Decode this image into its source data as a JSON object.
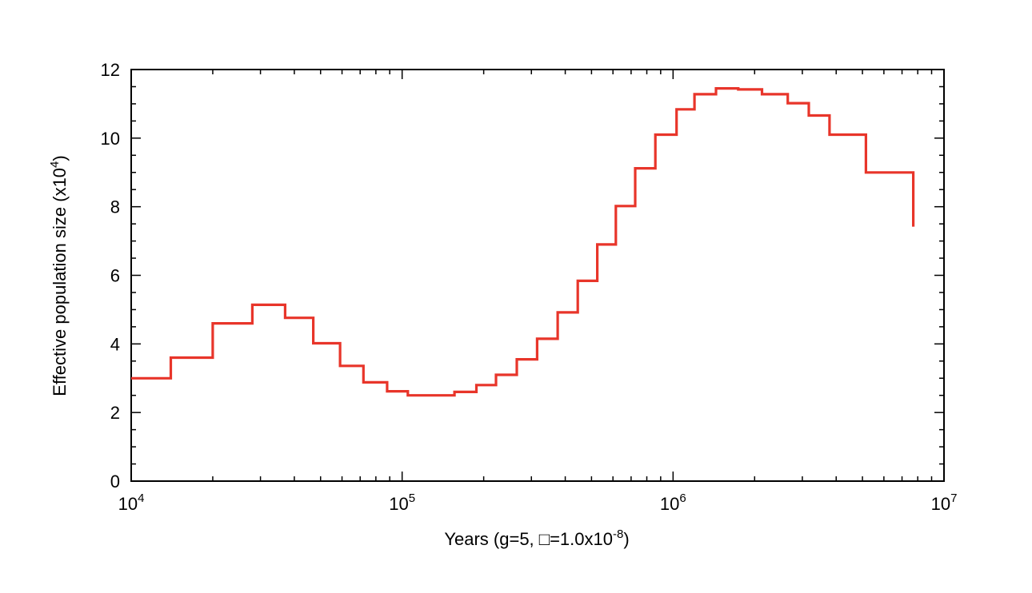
{
  "colors": {
    "line": "#e8352a",
    "axis": "#000000",
    "background": "#ffffff"
  },
  "chart_data": {
    "type": "line",
    "step": true,
    "x_scale": "log",
    "xlim": [
      10000,
      10000000
    ],
    "ylim": [
      0,
      12
    ],
    "grid": false,
    "legend": "none",
    "xlabel": {
      "prefix": "Years (g=5, ",
      "missing_glyph": "□",
      "middle": "=1.0x10",
      "superscript": "-8",
      "suffix": ")"
    },
    "ylabel": {
      "main": "Effective population size (x10",
      "superscript": "4",
      "suffix": ")"
    },
    "x_ticks": [
      {
        "value": 10000,
        "base": "10",
        "exp": "4"
      },
      {
        "value": 100000,
        "base": "10",
        "exp": "5"
      },
      {
        "value": 1000000,
        "base": "10",
        "exp": "6"
      },
      {
        "value": 10000000,
        "base": "10",
        "exp": "7"
      }
    ],
    "y_ticks": [
      {
        "value": 0,
        "label": "0"
      },
      {
        "value": 2,
        "label": "2"
      },
      {
        "value": 4,
        "label": "4"
      },
      {
        "value": 6,
        "label": "6"
      },
      {
        "value": 8,
        "label": "8"
      },
      {
        "value": 10,
        "label": "10"
      },
      {
        "value": 12,
        "label": "12"
      }
    ],
    "series": [
      {
        "x": [
          10000,
          14000,
          20000,
          28000,
          37000,
          47000,
          59000,
          72000,
          88000,
          105000,
          125000,
          156000,
          188000,
          222000,
          265000,
          315000,
          375000,
          445000,
          525000,
          615000,
          725000,
          860000,
          1030000,
          1200000,
          1440000,
          1740000,
          2130000,
          2650000,
          3170000,
          3780000,
          5150000,
          7700000
        ],
        "y": [
          3.0,
          3.6,
          4.6,
          5.14,
          4.76,
          4.02,
          3.36,
          2.88,
          2.62,
          2.5,
          2.5,
          2.6,
          2.8,
          3.1,
          3.55,
          4.15,
          4.92,
          5.84,
          6.9,
          8.02,
          9.12,
          10.1,
          10.84,
          11.28,
          11.45,
          11.42,
          11.28,
          11.02,
          10.66,
          10.1,
          9.0,
          7.42
        ]
      }
    ]
  }
}
